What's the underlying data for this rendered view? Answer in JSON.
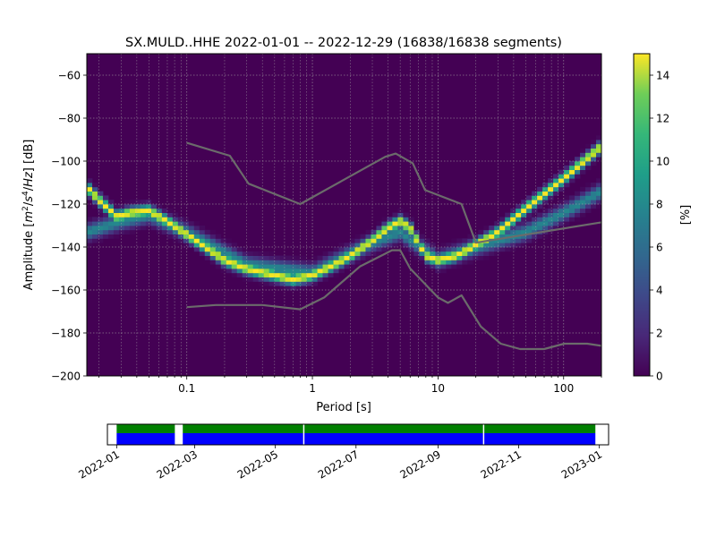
{
  "chart_data": [
    {
      "type": "heatmap",
      "title": "SX.MULD..HHE   2022-01-01 -- 2022-12-29  (16838/16838 segments)",
      "xlabel": "Period [s]",
      "ylabel_parts": [
        "Amplitude [",
        "m",
        "2",
        "/",
        "s",
        "4",
        "/",
        "Hz",
        "] [dB]"
      ],
      "xscale": "log",
      "xlim": [
        0.016,
        200
      ],
      "ylim": [
        -200,
        -50
      ],
      "x_ticks": [
        {
          "value": 0.1,
          "label": "0.1"
        },
        {
          "value": 1,
          "label": "1"
        },
        {
          "value": 10,
          "label": "10"
        },
        {
          "value": 100,
          "label": "100"
        }
      ],
      "y_ticks": [
        {
          "value": -60,
          "label": "−60"
        },
        {
          "value": -80,
          "label": "−80"
        },
        {
          "value": -100,
          "label": "−100"
        },
        {
          "value": -120,
          "label": "−120"
        },
        {
          "value": -140,
          "label": "−140"
        },
        {
          "value": -160,
          "label": "−160"
        },
        {
          "value": -180,
          "label": "−180"
        },
        {
          "value": -200,
          "label": "−200"
        }
      ],
      "grid": true,
      "colormap": "viridis",
      "colorbar": {
        "label": "[%]",
        "range": [
          0,
          15
        ],
        "ticks": [
          {
            "value": 0,
            "label": "0"
          },
          {
            "value": 2,
            "label": "2"
          },
          {
            "value": 4,
            "label": "4"
          },
          {
            "value": 6,
            "label": "6"
          },
          {
            "value": 8,
            "label": "8"
          },
          {
            "value": 10,
            "label": "10"
          },
          {
            "value": 12,
            "label": "12"
          },
          {
            "value": 14,
            "label": "14"
          }
        ]
      },
      "density_ridges": [
        {
          "points": [
            [
              0.016,
              -112
            ],
            [
              0.02,
              -118
            ],
            [
              0.028,
              -126
            ],
            [
              0.035,
              -124
            ],
            [
              0.05,
              -123
            ],
            [
              0.07,
              -128
            ],
            [
              0.1,
              -134
            ],
            [
              0.15,
              -141
            ],
            [
              0.2,
              -146
            ],
            [
              0.3,
              -150
            ],
            [
              0.5,
              -153
            ],
            [
              0.7,
              -155
            ],
            [
              1,
              -153
            ],
            [
              1.5,
              -148
            ],
            [
              2,
              -144
            ],
            [
              3,
              -137
            ],
            [
              4,
              -131
            ],
            [
              5,
              -128
            ],
            [
              6,
              -131
            ],
            [
              7,
              -138
            ],
            [
              8,
              -144
            ],
            [
              10,
              -146
            ],
            [
              14,
              -144
            ],
            [
              20,
              -139
            ],
            [
              30,
              -133
            ],
            [
              50,
              -122
            ],
            [
              100,
              -108
            ],
            [
              200,
              -93
            ]
          ],
          "peak_percent": 15
        },
        {
          "points": [
            [
              0.016,
              -133
            ],
            [
              0.03,
              -128
            ],
            [
              0.05,
              -125
            ],
            [
              0.1,
              -133
            ],
            [
              0.3,
              -148
            ],
            [
              1,
              -152
            ],
            [
              3,
              -138
            ],
            [
              5,
              -133
            ],
            [
              10,
              -146
            ],
            [
              20,
              -140
            ],
            [
              50,
              -133
            ],
            [
              100,
              -124
            ],
            [
              200,
              -114
            ]
          ],
          "peak_percent": 7
        }
      ],
      "reference_models": [
        {
          "points": [
            [
              0.1,
              -91.5
            ],
            [
              0.22,
              -97.5
            ],
            [
              0.31,
              -110.5
            ],
            [
              0.8,
              -120
            ],
            [
              3.8,
              -98
            ],
            [
              4.6,
              -96.5
            ],
            [
              6.3,
              -101
            ],
            [
              7.9,
              -113.5
            ],
            [
              15.4,
              -120
            ],
            [
              20,
              -138
            ],
            [
              200,
              -128.5
            ]
          ]
        },
        {
          "points": [
            [
              0.1,
              -168
            ],
            [
              0.17,
              -167
            ],
            [
              0.4,
              -167
            ],
            [
              0.8,
              -169
            ],
            [
              1.24,
              -163.5
            ],
            [
              2.4,
              -149
            ],
            [
              4.3,
              -141.5
            ],
            [
              5.0,
              -141.5
            ],
            [
              6.0,
              -150
            ],
            [
              10,
              -163.5
            ],
            [
              12,
              -166
            ],
            [
              15.4,
              -162.5
            ],
            [
              21.9,
              -177
            ],
            [
              31.6,
              -185
            ],
            [
              45,
              -187.5
            ],
            [
              70,
              -187.5
            ],
            [
              101,
              -185
            ],
            [
              154,
              -185
            ],
            [
              200,
              -186
            ]
          ]
        }
      ]
    },
    {
      "type": "timeline",
      "xlim": [
        "2021-12-25",
        "2023-01-08"
      ],
      "x_ticks": [
        "2022-01",
        "2022-03",
        "2022-05",
        "2022-07",
        "2022-09",
        "2022-11",
        "2023-01"
      ],
      "coverage": {
        "start": "2022-01-01",
        "end": "2022-12-29"
      },
      "gaps": [
        {
          "start": "2022-02-14",
          "end": "2022-02-20"
        },
        {
          "start": "2022-05-22",
          "end": "2022-05-23"
        },
        {
          "start": "2022-10-05",
          "end": "2022-10-06"
        }
      ],
      "colors": {
        "top_band": "#008000",
        "bottom_band": "#0000ff"
      }
    }
  ]
}
